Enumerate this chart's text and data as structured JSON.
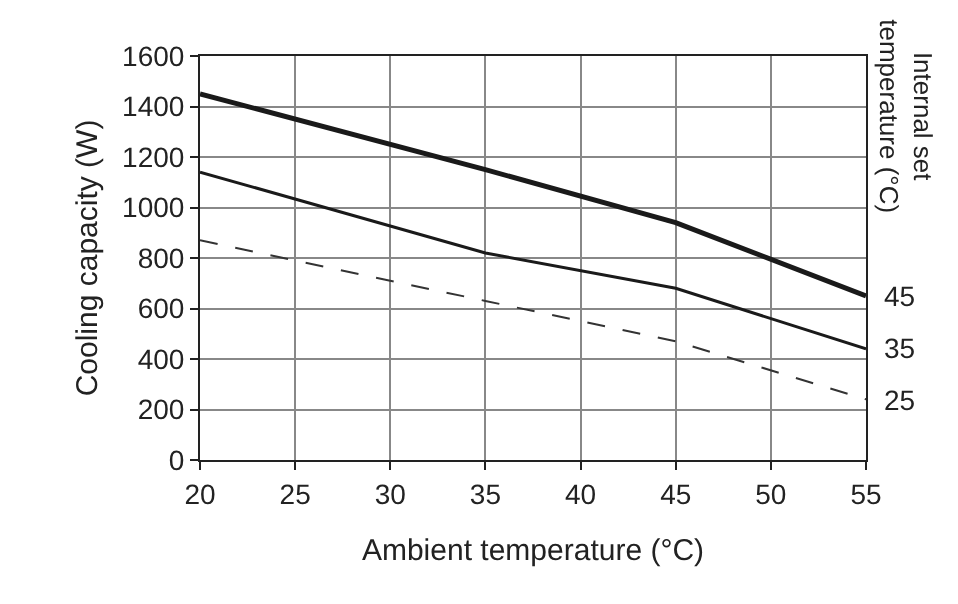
{
  "chart_data": {
    "type": "line",
    "xlabel": "Ambient temperature (°C)",
    "ylabel": "Cooling capacity (W)",
    "legend_title": "Internal set temperature (°C)",
    "x": [
      20,
      35,
      45,
      55
    ],
    "series": [
      {
        "name": "45",
        "color": "#1a1a1a",
        "values": [
          1450,
          1150,
          940,
          650
        ]
      },
      {
        "name": "35",
        "color": "#1a1a1a",
        "values": [
          1140,
          820,
          680,
          440
        ]
      },
      {
        "name": "25",
        "color": "#333333",
        "values": [
          870,
          630,
          470,
          240
        ],
        "line_style": "dashed"
      }
    ],
    "xlim": [
      20,
      55
    ],
    "xticks": [
      20,
      25,
      30,
      35,
      40,
      45,
      50,
      55
    ],
    "ylim": [
      0,
      1600
    ],
    "yticks": [
      0,
      200,
      400,
      600,
      800,
      1000,
      1200,
      1400,
      1600
    ],
    "grid": true,
    "legend": false,
    "marker": "none",
    "line_style": "solid"
  }
}
